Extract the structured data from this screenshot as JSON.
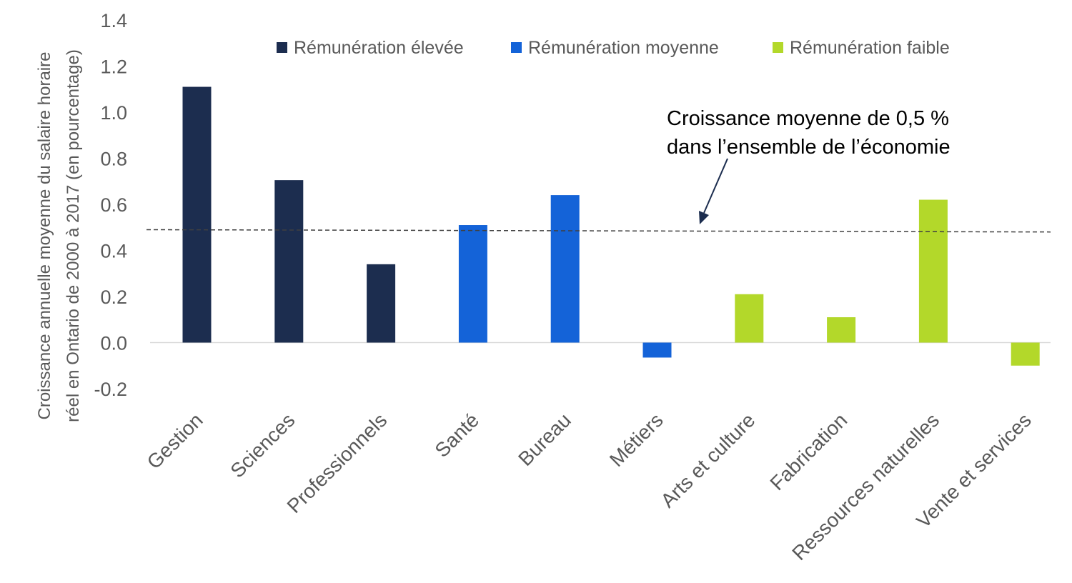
{
  "chart_data": {
    "type": "bar",
    "title": "",
    "ylabel": [
      "Croissance annuelle moyenne du salaire horaire",
      "réel en Ontario de 2000 à 2017 (en pourcentage)"
    ],
    "xlabel": "",
    "ylim": [
      -0.2,
      1.4
    ],
    "yticks": [
      "1.4",
      "1.2",
      "1.0",
      "0.8",
      "0.6",
      "0.4",
      "0.2",
      "0.0",
      "-0.2"
    ],
    "ytick_values": [
      1.4,
      1.2,
      1.0,
      0.8,
      0.6,
      0.4,
      0.2,
      0.0,
      -0.2
    ],
    "categories": [
      "Gestion",
      "Sciences",
      "Professionnels",
      "Santé",
      "Bureau",
      "Métiers",
      "Arts et culture",
      "Fabrication",
      "Ressources naturelles",
      "Vente et services"
    ],
    "values": [
      1.11,
      0.705,
      0.34,
      0.51,
      0.64,
      -0.065,
      0.21,
      0.11,
      0.62,
      -0.1
    ],
    "groups": [
      "high",
      "high",
      "high",
      "mid",
      "mid",
      "mid",
      "low",
      "low",
      "low",
      "low"
    ],
    "legend": [
      {
        "key": "high",
        "label": "Rémunération élevée",
        "color": "#1c2d4f"
      },
      {
        "key": "mid",
        "label": "Rémunération moyenne",
        "color": "#1463d8"
      },
      {
        "key": "low",
        "label": "Rémunération faible",
        "color": "#b3d82a"
      }
    ],
    "legend_position": "top",
    "reference_line": {
      "value": 0.49,
      "end_value": 0.48,
      "style": "dashed"
    },
    "annotation": [
      "Croissance moyenne de 0,5 %",
      "dans l’ensemble de l’économie"
    ],
    "grid": false
  }
}
